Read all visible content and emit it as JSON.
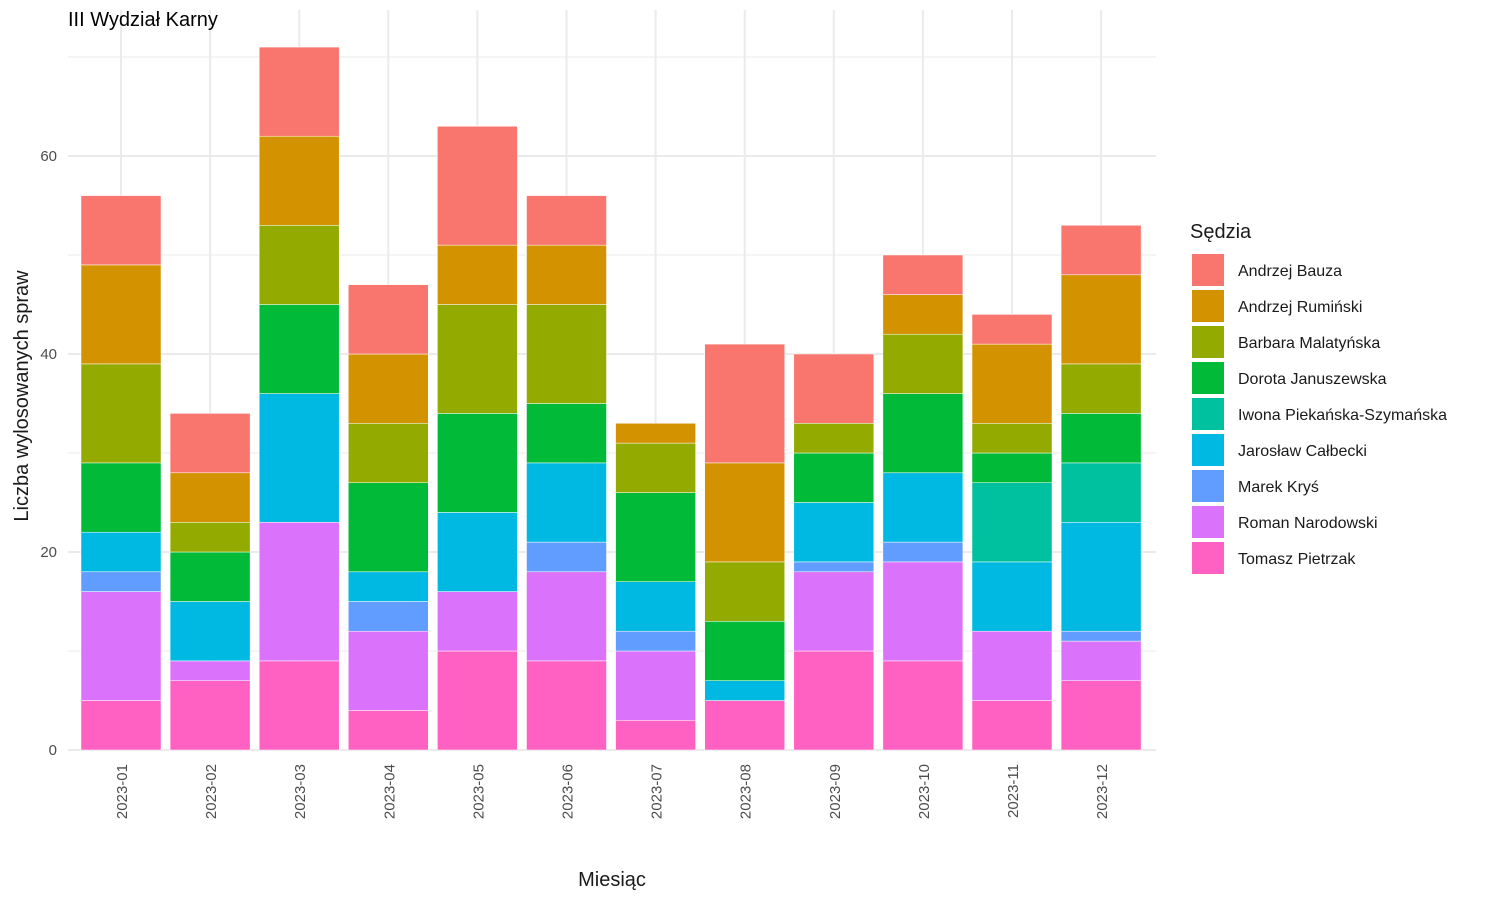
{
  "chart_data": {
    "type": "bar",
    "stacked": true,
    "title": "III Wydział Karny",
    "xlabel": "Miesiąc",
    "ylabel": "Liczba wylosowanych spraw",
    "ylim": [
      0,
      72
    ],
    "yticks": [
      0,
      20,
      40,
      60
    ],
    "grid": true,
    "legend": {
      "title": "Sędzia",
      "position": "right"
    },
    "categories": [
      "2023-01",
      "2023-02",
      "2023-03",
      "2023-04",
      "2023-05",
      "2023-06",
      "2023-07",
      "2023-08",
      "2023-09",
      "2023-10",
      "2023-11",
      "2023-12"
    ],
    "series": [
      {
        "name": "Andrzej Bauza",
        "color": "#F8766D",
        "values": [
          7,
          6,
          9,
          7,
          12,
          5,
          0,
          12,
          7,
          4,
          3,
          5
        ]
      },
      {
        "name": "Andrzej Rumiński",
        "color": "#D39200",
        "values": [
          10,
          5,
          9,
          7,
          6,
          6,
          2,
          10,
          0,
          4,
          8,
          9
        ]
      },
      {
        "name": "Barbara Malatyńska",
        "color": "#93AA00",
        "values": [
          10,
          3,
          8,
          6,
          11,
          10,
          5,
          6,
          3,
          6,
          3,
          5
        ]
      },
      {
        "name": "Dorota Januszewska",
        "color": "#00BA38",
        "values": [
          7,
          5,
          9,
          9,
          10,
          6,
          9,
          6,
          5,
          8,
          3,
          5
        ]
      },
      {
        "name": "Iwona Piekańska-Szymańska",
        "color": "#00C19F",
        "values": [
          0,
          0,
          0,
          0,
          0,
          0,
          0,
          0,
          0,
          0,
          8,
          6
        ]
      },
      {
        "name": "Jarosław Całbecki",
        "color": "#00B9E3",
        "values": [
          4,
          6,
          13,
          3,
          8,
          8,
          5,
          2,
          6,
          7,
          7,
          11
        ]
      },
      {
        "name": "Marek Kryś",
        "color": "#619CFF",
        "values": [
          2,
          0,
          0,
          3,
          0,
          3,
          2,
          0,
          1,
          2,
          0,
          1
        ]
      },
      {
        "name": "Roman Narodowski",
        "color": "#DB72FB",
        "values": [
          11,
          2,
          14,
          8,
          6,
          9,
          7,
          0,
          8,
          10,
          7,
          4
        ]
      },
      {
        "name": "Tomasz Pietrzak",
        "color": "#FF61C3",
        "values": [
          5,
          7,
          9,
          4,
          10,
          9,
          3,
          5,
          10,
          9,
          5,
          7
        ]
      }
    ]
  }
}
